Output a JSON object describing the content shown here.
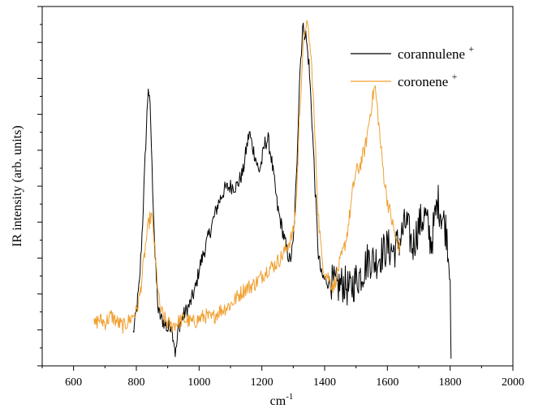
{
  "chart_data": {
    "type": "line",
    "xlabel": "cm",
    "xlabel_superscript": "-1",
    "ylabel": "IR  intensity (arb. units)",
    "xlim": [
      500,
      2000
    ],
    "ylim": [
      0,
      1
    ],
    "x_ticks": [
      600,
      800,
      1000,
      1200,
      1400,
      1600,
      1800,
      2000
    ],
    "y_tick_labels_shown": false,
    "grid": false,
    "legend_position": "top-right",
    "series": [
      {
        "name": "corannulene",
        "name_superscript": "+",
        "color": "#000000",
        "x": [
          790,
          800,
          810,
          820,
          830,
          838,
          845,
          850,
          860,
          870,
          880,
          890,
          900,
          910,
          920,
          925,
          935,
          950,
          970,
          990,
          1000,
          1020,
          1040,
          1060,
          1080,
          1100,
          1120,
          1140,
          1150,
          1160,
          1170,
          1180,
          1190,
          1200,
          1210,
          1220,
          1230,
          1240,
          1250,
          1260,
          1270,
          1280,
          1290,
          1300,
          1310,
          1320,
          1330,
          1340,
          1350,
          1360,
          1370,
          1380,
          1390,
          1400,
          1420,
          1440,
          1460,
          1480,
          1500,
          1520,
          1540,
          1560,
          1580,
          1600,
          1620,
          1640,
          1660,
          1680,
          1700,
          1720,
          1740,
          1760,
          1780,
          1790,
          1795,
          1800,
          1803
        ],
        "values": [
          0.09,
          0.15,
          0.23,
          0.4,
          0.62,
          0.78,
          0.7,
          0.55,
          0.3,
          0.15,
          0.13,
          0.12,
          0.1,
          0.12,
          0.07,
          0.03,
          0.11,
          0.14,
          0.17,
          0.22,
          0.27,
          0.33,
          0.39,
          0.45,
          0.49,
          0.5,
          0.5,
          0.54,
          0.6,
          0.65,
          0.61,
          0.58,
          0.54,
          0.57,
          0.62,
          0.63,
          0.58,
          0.51,
          0.44,
          0.4,
          0.36,
          0.32,
          0.29,
          0.34,
          0.52,
          0.8,
          0.94,
          0.92,
          0.84,
          0.68,
          0.49,
          0.31,
          0.25,
          0.24,
          0.23,
          0.22,
          0.23,
          0.21,
          0.24,
          0.26,
          0.3,
          0.29,
          0.31,
          0.33,
          0.32,
          0.35,
          0.4,
          0.33,
          0.39,
          0.42,
          0.34,
          0.46,
          0.4,
          0.37,
          0.3,
          0.28,
          0.02
        ]
      },
      {
        "name": "coronene",
        "name_superscript": "+",
        "color": "#f0a030",
        "x": [
          665,
          680,
          700,
          720,
          740,
          760,
          780,
          800,
          810,
          820,
          830,
          840,
          848,
          855,
          865,
          875,
          890,
          910,
          930,
          950,
          980,
          1000,
          1020,
          1040,
          1060,
          1080,
          1100,
          1120,
          1140,
          1160,
          1180,
          1200,
          1220,
          1240,
          1260,
          1280,
          1300,
          1310,
          1320,
          1330,
          1340,
          1350,
          1360,
          1370,
          1380,
          1390,
          1400,
          1410,
          1420,
          1430,
          1440,
          1450,
          1460,
          1470,
          1480,
          1490,
          1500,
          1510,
          1520,
          1530,
          1540,
          1550,
          1560,
          1570,
          1580,
          1590,
          1600,
          1610,
          1620,
          1630,
          1640
        ],
        "values": [
          0.11,
          0.13,
          0.12,
          0.14,
          0.12,
          0.11,
          0.13,
          0.15,
          0.19,
          0.26,
          0.34,
          0.4,
          0.42,
          0.37,
          0.25,
          0.16,
          0.13,
          0.11,
          0.12,
          0.13,
          0.12,
          0.13,
          0.14,
          0.13,
          0.15,
          0.16,
          0.17,
          0.19,
          0.21,
          0.22,
          0.23,
          0.25,
          0.27,
          0.28,
          0.3,
          0.33,
          0.37,
          0.46,
          0.7,
          0.86,
          0.96,
          0.92,
          0.82,
          0.62,
          0.42,
          0.31,
          0.26,
          0.25,
          0.23,
          0.22,
          0.26,
          0.29,
          0.32,
          0.36,
          0.42,
          0.49,
          0.54,
          0.55,
          0.58,
          0.61,
          0.67,
          0.73,
          0.78,
          0.7,
          0.6,
          0.52,
          0.46,
          0.42,
          0.38,
          0.34,
          0.33
        ]
      }
    ]
  }
}
